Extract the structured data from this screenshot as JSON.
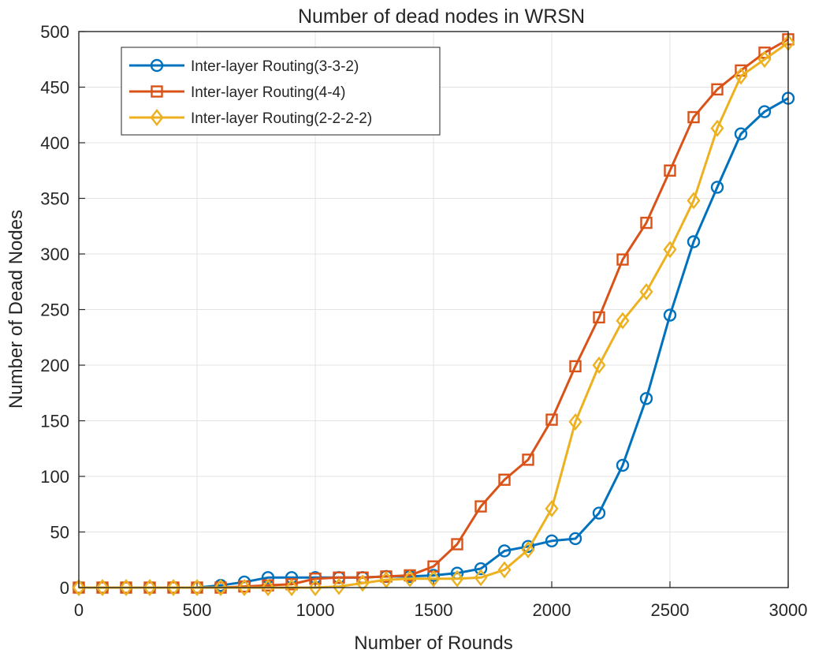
{
  "chart_data": {
    "type": "line",
    "title": "Number of dead nodes in WRSN",
    "xlabel": "Number of Rounds",
    "ylabel": "Number of Dead Nodes",
    "xlim": [
      0,
      3000
    ],
    "ylim": [
      0,
      500
    ],
    "xticks": [
      0,
      500,
      1000,
      1500,
      2000,
      2500,
      3000
    ],
    "yticks": [
      0,
      50,
      100,
      150,
      200,
      250,
      300,
      350,
      400,
      450,
      500
    ],
    "grid": true,
    "legend_position": "top-left",
    "x": [
      0,
      100,
      200,
      300,
      400,
      500,
      600,
      700,
      800,
      900,
      1000,
      1100,
      1200,
      1300,
      1400,
      1500,
      1600,
      1700,
      1800,
      1900,
      2000,
      2100,
      2200,
      2300,
      2400,
      2500,
      2600,
      2700,
      2800,
      2900,
      3000
    ],
    "series": [
      {
        "name": "Inter-layer Routing(3-3-2)",
        "color": "#0072bd",
        "marker": "circle",
        "values": [
          0,
          0,
          0,
          0,
          0,
          0,
          2,
          5,
          9,
          9,
          9,
          9,
          9,
          10,
          10,
          11,
          13,
          17,
          33,
          37,
          42,
          44,
          67,
          110,
          170,
          245,
          311,
          360,
          408,
          428,
          440
        ]
      },
      {
        "name": "Inter-layer Routing(4-4)",
        "color": "#d95319",
        "marker": "square",
        "values": [
          0,
          0,
          0,
          0,
          0,
          0,
          0,
          1,
          2,
          3,
          8,
          9,
          9,
          10,
          11,
          19,
          39,
          73,
          97,
          115,
          151,
          199,
          243,
          295,
          328,
          375,
          423,
          448,
          465,
          481,
          493
        ]
      },
      {
        "name": "Inter-layer Routing(2-2-2-2)",
        "color": "#edb120",
        "marker": "diamond",
        "values": [
          0,
          0,
          0,
          0,
          0,
          0,
          0,
          0,
          0,
          0,
          0,
          1,
          4,
          7,
          8,
          8,
          8,
          9,
          16,
          34,
          71,
          149,
          200,
          240,
          266,
          304,
          348,
          413,
          460,
          475,
          490
        ]
      }
    ]
  }
}
